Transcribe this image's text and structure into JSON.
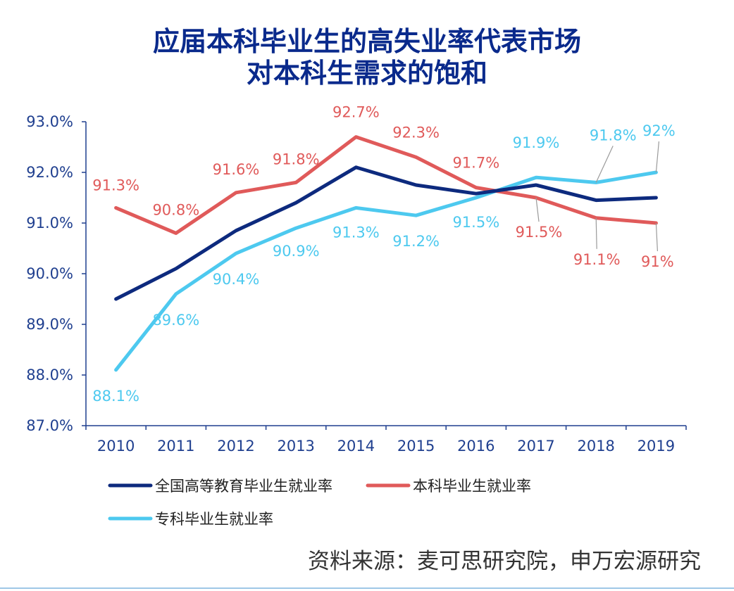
{
  "title_lines": [
    "应届本科毕业生的高失业率代表市场",
    "对本科生需求的饱和"
  ],
  "colors": {
    "title": "#0a2a8c",
    "axis": "#1f3f8f",
    "national": "#0d2a7e",
    "undergrad": "#e05a5a",
    "vocational": "#4dc9ef"
  },
  "chart_data": {
    "type": "line",
    "title": "应届本科毕业生的高失业率代表市场对本科生需求的饱和",
    "xlabel": "",
    "ylabel": "",
    "categories": [
      "2010",
      "2011",
      "2012",
      "2013",
      "2014",
      "2015",
      "2016",
      "2017",
      "2018",
      "2019"
    ],
    "y_ticks": [
      "93.0%",
      "92.0%",
      "91.0%",
      "90.0%",
      "89.0%",
      "88.0%",
      "87.0%"
    ],
    "ylim": [
      87.0,
      93.0
    ],
    "legend_position": "bottom",
    "series": [
      {
        "name": "全国高等教育毕业生就业率",
        "key": "national",
        "values": [
          89.5,
          90.1,
          90.85,
          91.4,
          92.1,
          91.75,
          91.58,
          91.75,
          91.45,
          91.5
        ],
        "labels": [
          "",
          "",
          "",
          "",
          "",
          "",
          "",
          "",
          "",
          ""
        ]
      },
      {
        "name": "本科毕业生就业率",
        "key": "undergrad",
        "values": [
          91.3,
          90.8,
          91.6,
          91.8,
          92.7,
          92.3,
          91.7,
          91.5,
          91.1,
          91.0
        ],
        "labels": [
          "91.3%",
          "90.8%",
          "91.6%",
          "91.8%",
          "92.7%",
          "92.3%",
          "91.7%",
          "91.5%",
          "91.1%",
          "91%"
        ]
      },
      {
        "name": "专科毕业生就业率",
        "key": "vocational",
        "values": [
          88.1,
          89.6,
          90.4,
          90.9,
          91.3,
          91.15,
          91.5,
          91.9,
          91.8,
          92.0
        ],
        "labels": [
          "88.1%",
          "89.6%",
          "90.4%",
          "90.9%",
          "91.3%",
          "91.2%",
          "91.5%",
          "91.9%",
          "91.8%",
          "92%"
        ]
      }
    ]
  },
  "source": "资料来源：麦可思研究院，申万宏源研究"
}
